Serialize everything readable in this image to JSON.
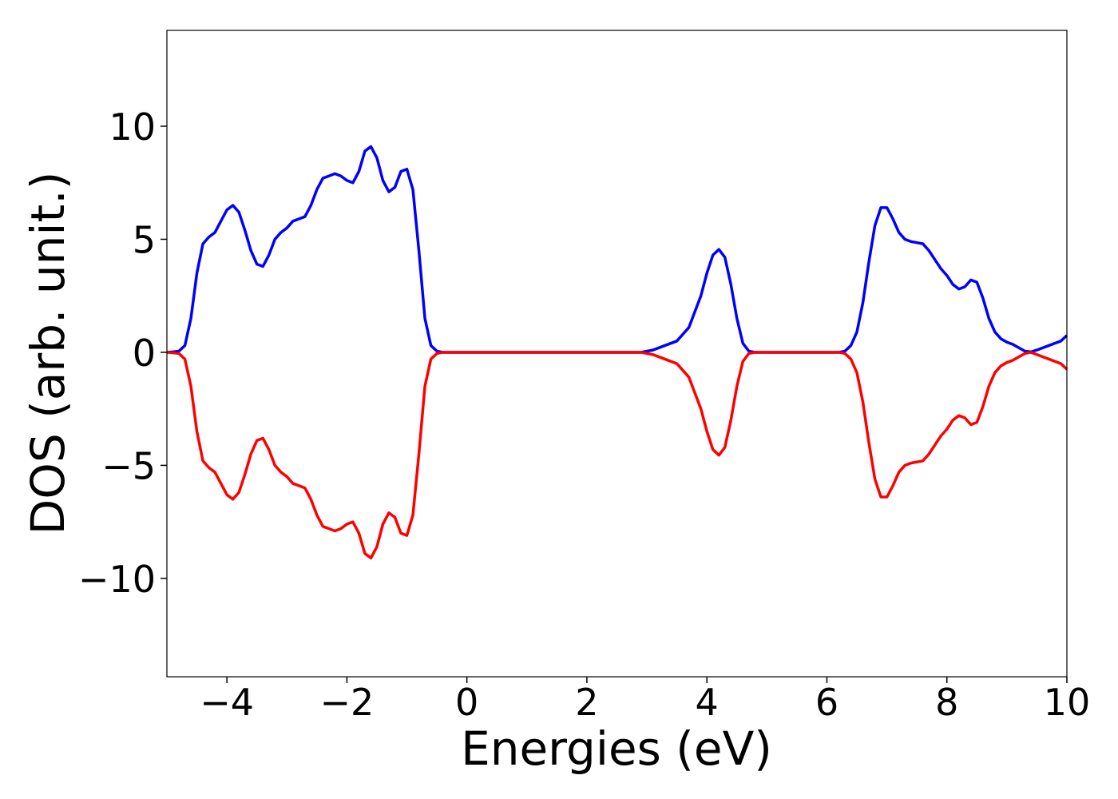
{
  "chart_data": {
    "type": "line",
    "x_label": "Energies (eV)",
    "y_label": "DOS (arb. unit.)",
    "x": [
      -5.0,
      -4.9,
      -4.8,
      -4.7,
      -4.6,
      -4.5,
      -4.4,
      -4.3,
      -4.2,
      -4.1,
      -4.0,
      -3.9,
      -3.8,
      -3.7,
      -3.6,
      -3.5,
      -3.4,
      -3.3,
      -3.2,
      -3.1,
      -3.0,
      -2.9,
      -2.8,
      -2.7,
      -2.6,
      -2.5,
      -2.4,
      -2.3,
      -2.2,
      -2.1,
      -2.0,
      -1.9,
      -1.8,
      -1.7,
      -1.6,
      -1.5,
      -1.4,
      -1.3,
      -1.2,
      -1.1,
      -1.0,
      -0.9,
      -0.8,
      -0.7,
      -0.6,
      -0.5,
      -0.4,
      0,
      1,
      2,
      2.9,
      3.1,
      3.3,
      3.5,
      3.7,
      3.9,
      4.0,
      4.1,
      4.2,
      4.3,
      4.4,
      4.5,
      4.6,
      4.7,
      4.8,
      5,
      6,
      6.2,
      6.3,
      6.4,
      6.5,
      6.6,
      6.7,
      6.8,
      6.9,
      7.0,
      7.1,
      7.2,
      7.3,
      7.4,
      7.5,
      7.6,
      7.7,
      7.8,
      7.9,
      8.0,
      8.1,
      8.2,
      8.3,
      8.4,
      8.5,
      8.6,
      8.7,
      8.8,
      8.9,
      9.0,
      9.1,
      9.2,
      9.3,
      9.4,
      9.5,
      9.6,
      9.7,
      9.8,
      9.9,
      10.0
    ],
    "series": [
      {
        "color": "#0000ff",
        "values": [
          0,
          0.02,
          0.05,
          0.3,
          1.5,
          3.5,
          4.8,
          5.1,
          5.3,
          5.8,
          6.3,
          6.5,
          6.2,
          5.4,
          4.5,
          3.9,
          3.8,
          4.3,
          5.0,
          5.3,
          5.5,
          5.8,
          5.9,
          6.0,
          6.5,
          7.2,
          7.7,
          7.8,
          7.9,
          7.8,
          7.6,
          7.5,
          8.0,
          8.9,
          9.1,
          8.6,
          7.6,
          7.1,
          7.3,
          8.0,
          8.1,
          7.2,
          4.5,
          1.5,
          0.3,
          0.05,
          0,
          0,
          0,
          0,
          0,
          0.1,
          0.3,
          0.5,
          1.1,
          2.5,
          3.5,
          4.3,
          4.55,
          4.2,
          3.0,
          1.5,
          0.4,
          0.05,
          0,
          0,
          0,
          0,
          0.05,
          0.3,
          0.9,
          2.2,
          4.0,
          5.6,
          6.4,
          6.4,
          5.9,
          5.3,
          5.0,
          4.9,
          4.85,
          4.8,
          4.5,
          4.1,
          3.7,
          3.4,
          3.0,
          2.8,
          2.9,
          3.2,
          3.1,
          2.4,
          1.5,
          0.9,
          0.6,
          0.45,
          0.35,
          0.2,
          0.05,
          0.02,
          0.1,
          0.2,
          0.3,
          0.4,
          0.5,
          0.75
        ]
      },
      {
        "color": "#ff0000",
        "values": [
          0,
          -0.02,
          -0.05,
          -0.3,
          -1.5,
          -3.5,
          -4.8,
          -5.1,
          -5.3,
          -5.8,
          -6.3,
          -6.5,
          -6.2,
          -5.4,
          -4.5,
          -3.9,
          -3.8,
          -4.3,
          -5.0,
          -5.3,
          -5.5,
          -5.8,
          -5.9,
          -6.0,
          -6.5,
          -7.2,
          -7.7,
          -7.8,
          -7.9,
          -7.8,
          -7.6,
          -7.5,
          -8.0,
          -8.9,
          -9.1,
          -8.6,
          -7.6,
          -7.1,
          -7.3,
          -8.0,
          -8.1,
          -7.2,
          -4.5,
          -1.5,
          -0.3,
          -0.05,
          0,
          0,
          0,
          0,
          0,
          -0.1,
          -0.3,
          -0.5,
          -1.1,
          -2.5,
          -3.5,
          -4.3,
          -4.55,
          -4.2,
          -3.0,
          -1.5,
          -0.4,
          -0.05,
          0,
          0,
          0,
          0,
          -0.05,
          -0.3,
          -0.9,
          -2.2,
          -4.0,
          -5.6,
          -6.4,
          -6.4,
          -5.9,
          -5.3,
          -5.0,
          -4.9,
          -4.85,
          -4.8,
          -4.5,
          -4.1,
          -3.7,
          -3.4,
          -3.0,
          -2.8,
          -2.9,
          -3.2,
          -3.1,
          -2.4,
          -1.5,
          -0.9,
          -0.6,
          -0.45,
          -0.35,
          -0.2,
          -0.05,
          0,
          -0.1,
          -0.2,
          -0.3,
          -0.4,
          -0.5,
          -0.75
        ]
      }
    ],
    "xlim": [
      -5,
      10
    ],
    "ylim": [
      -14.35,
      14.24
    ],
    "xticks": [
      {
        "value": -4,
        "label": "−4"
      },
      {
        "value": -2,
        "label": "−2"
      },
      0,
      2,
      4,
      6,
      8,
      10
    ],
    "yticks": [
      {
        "value": -10,
        "label": "−10"
      },
      {
        "value": -5,
        "label": "−5"
      },
      0,
      5,
      10
    ],
    "grid": false
  }
}
